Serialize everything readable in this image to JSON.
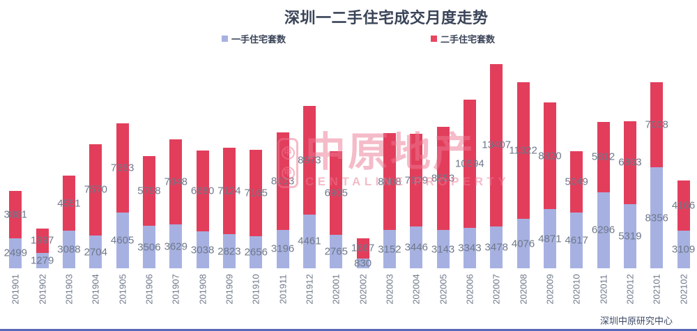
{
  "title": "深圳一二手住宅成交月度走势",
  "legend": [
    {
      "label": "一手住宅套数",
      "color": "#a7b1e1"
    },
    {
      "label": "二手住宅套数",
      "color": "#e8465f"
    }
  ],
  "footer": "深圳中原研究中心",
  "watermark": {
    "cn": "中原地产",
    "en": "CENTALINE PROPERTY",
    "seal_char": "中"
  },
  "colors": {
    "first_hand_bar": "#a7b1e1",
    "second_hand_bar": "#e23e5c",
    "value_label": "#6e7889",
    "axis_label": "#6e7889",
    "title_text": "#3a4458",
    "watermark_pink": "rgba(236,120,145,0.5)",
    "bottom_rule": "#5a6ab8"
  },
  "chart_data": {
    "type": "bar",
    "stacked": true,
    "title": "深圳一二手住宅成交月度走势",
    "xlabel": "",
    "ylabel": "",
    "legend_position": "top",
    "grid": false,
    "axis_hidden": true,
    "x_tick_rotation": -90,
    "label_position": "inside-segment-center",
    "ylim": [
      0,
      16885
    ],
    "categories": [
      "201901",
      "201902",
      "201903",
      "201904",
      "201905",
      "201906",
      "201907",
      "201908",
      "201909",
      "201910",
      "201911",
      "201912",
      "202001",
      "202002",
      "202003",
      "202004",
      "202005",
      "202006",
      "202007",
      "202008",
      "202009",
      "202010",
      "202011",
      "202012",
      "202101",
      "202102"
    ],
    "series": [
      {
        "name": "一手住宅套数",
        "color": "#a7b1e1",
        "values": [
          2499,
          1279,
          3088,
          2704,
          4605,
          3506,
          3629,
          3038,
          2823,
          2656,
          3196,
          4461,
          2765,
          830,
          3152,
          3446,
          3143,
          3343,
          3478,
          4076,
          4871,
          4617,
          6296,
          5319,
          8356,
          3109
        ]
      },
      {
        "name": "二手住宅套数",
        "color": "#e23e5c",
        "values": [
          3881,
          1997,
          4551,
          7570,
          7363,
          5798,
          7048,
          6680,
          7124,
          7165,
          8013,
          8973,
          6905,
          1667,
          8008,
          7679,
          8553,
          10594,
          13407,
          11322,
          8820,
          5049,
          5812,
          6863,
          7008,
          4166
        ]
      }
    ]
  }
}
